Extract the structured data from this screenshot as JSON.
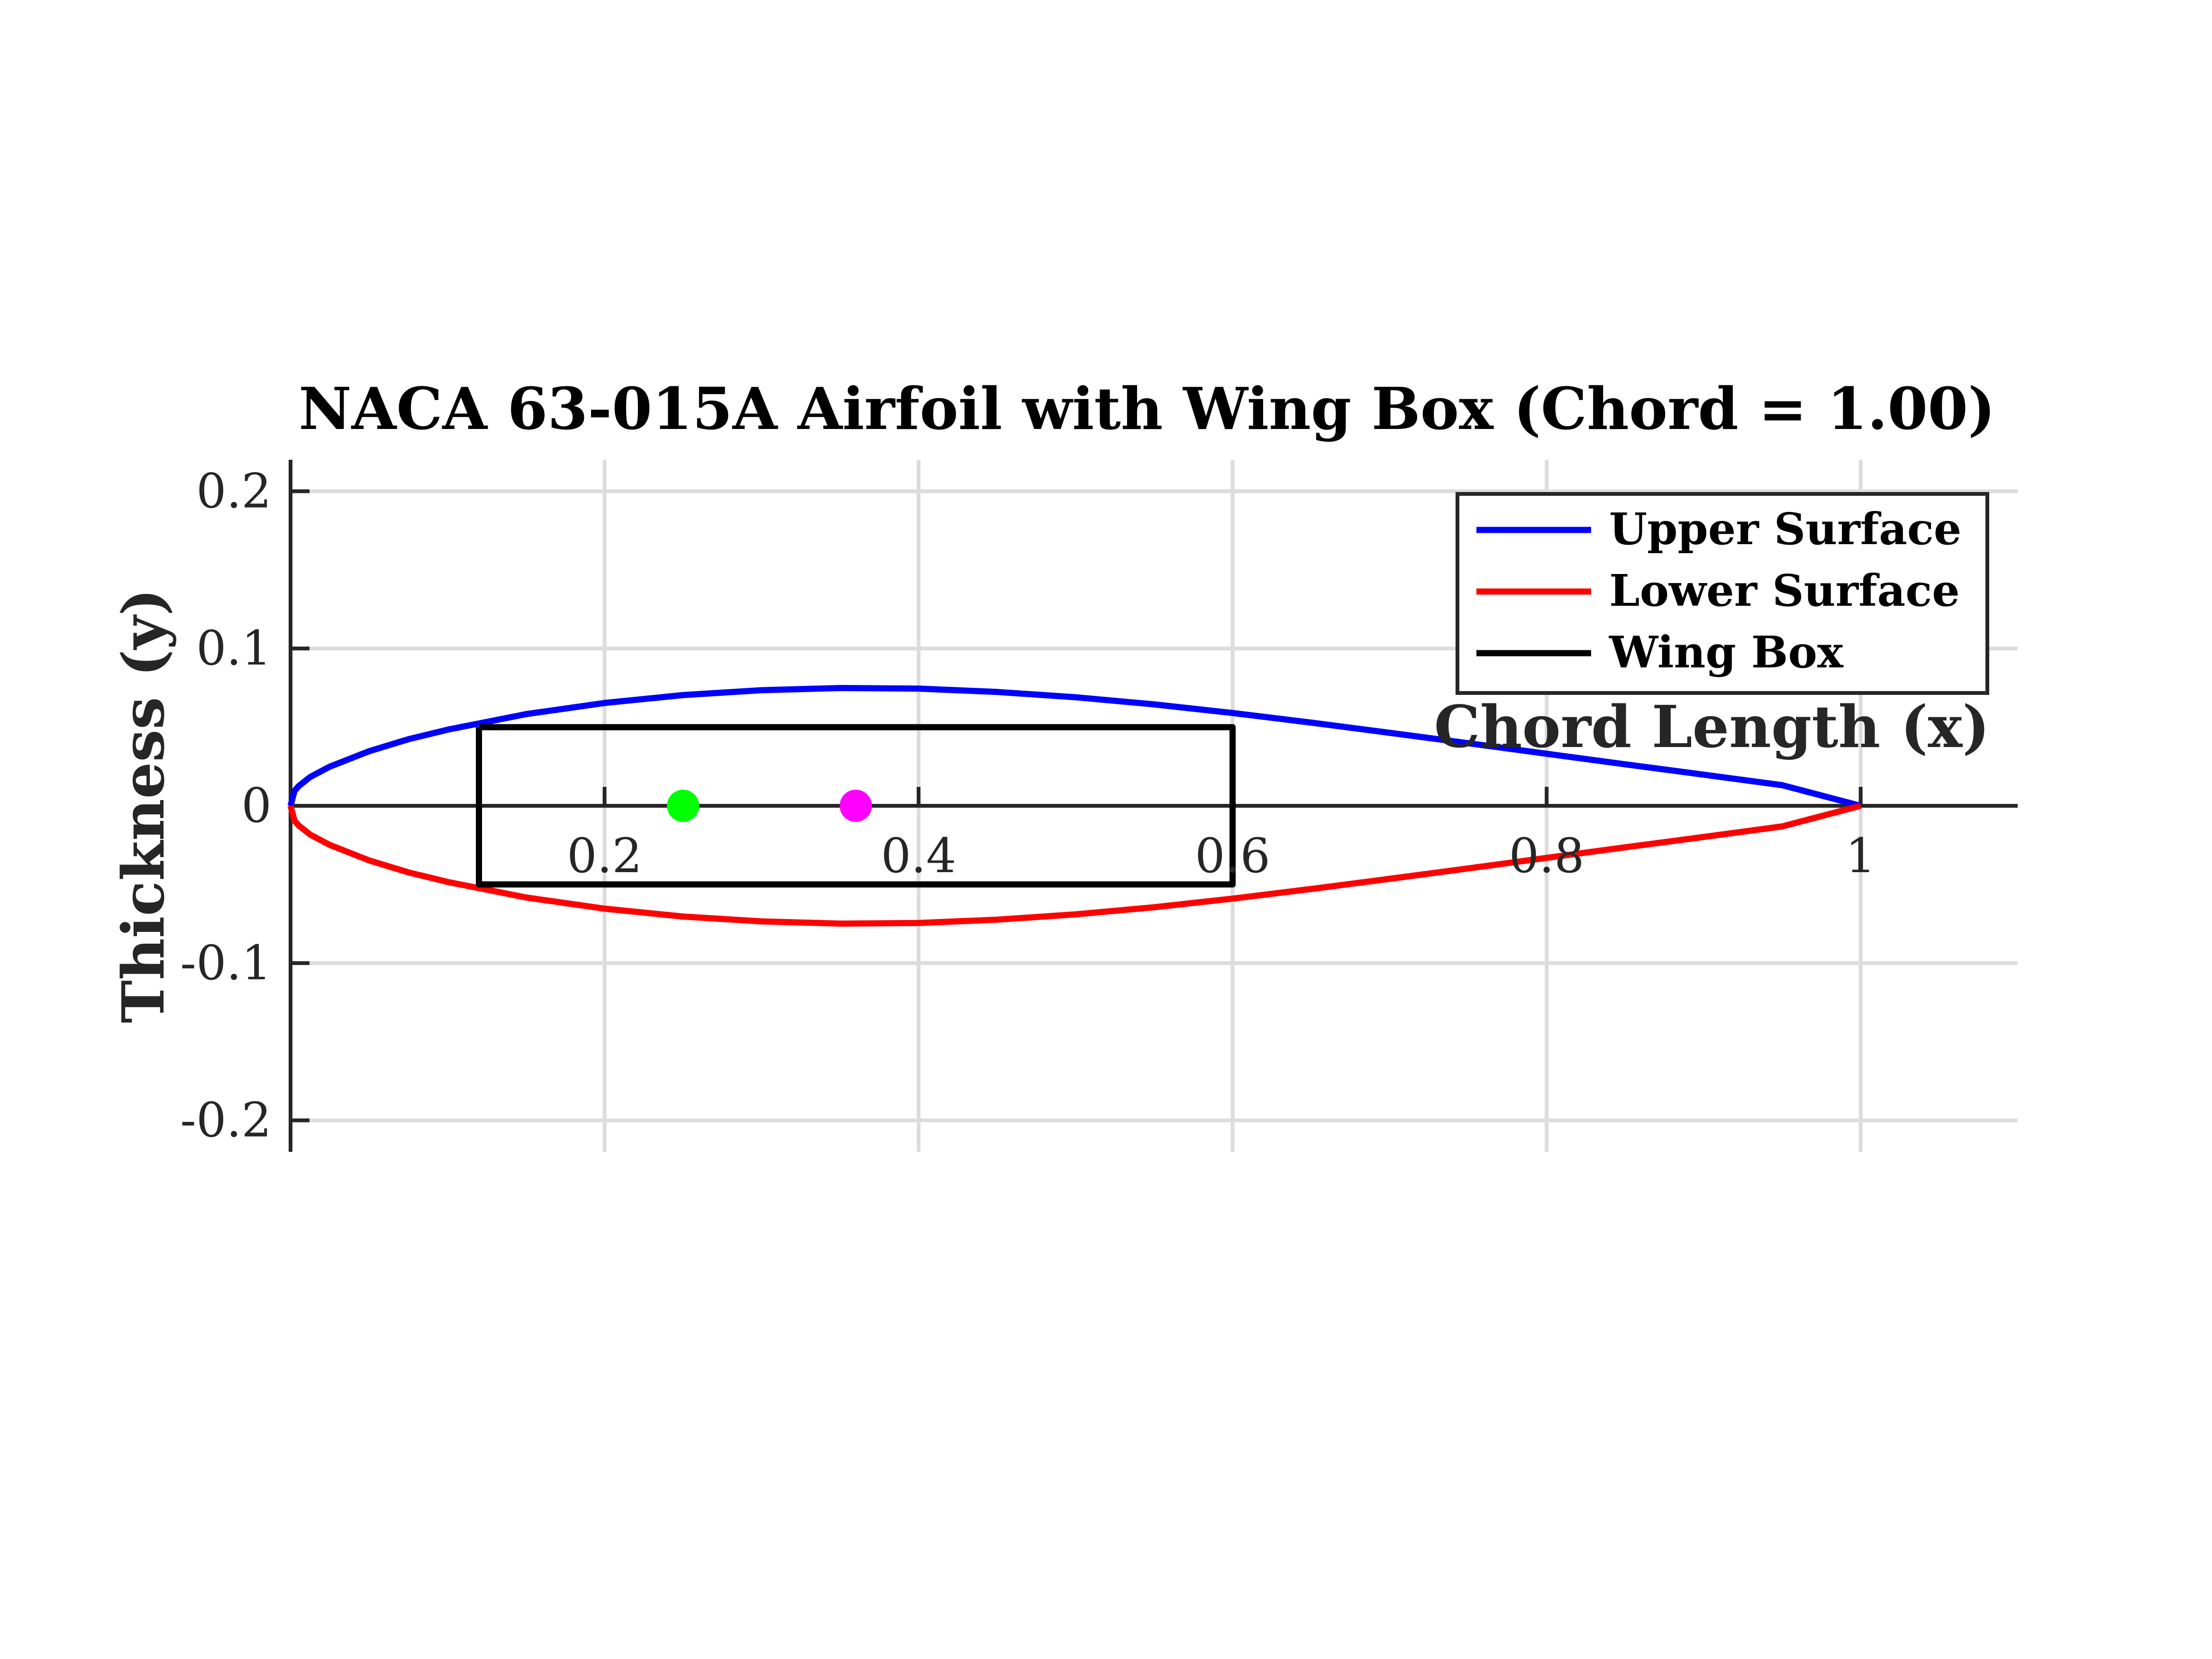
{
  "chart_data": {
    "type": "line",
    "title": "NACA 63-015A Airfoil with Wing Box (Chord = 1.00)",
    "xlabel": "Chord Length (x)",
    "ylabel": "Thickness (y)",
    "xlim": [
      0,
      1.1
    ],
    "ylim": [
      -0.22,
      0.22
    ],
    "xticks": [
      0.2,
      0.4,
      0.6,
      0.8,
      1
    ],
    "xtick_labels": [
      "0.2",
      "0.4",
      "0.6",
      "0.8",
      "1"
    ],
    "yticks": [
      0.2,
      0.1,
      0,
      -0.1,
      -0.2
    ],
    "ytick_labels": [
      "0.2",
      "0.1",
      "0",
      "-0.1",
      "-0.2"
    ],
    "grid": true,
    "legend_position": "top-right",
    "series": [
      {
        "name": "Upper Surface",
        "color": "#0000ff",
        "x": [
          0,
          0.0025,
          0.005,
          0.0125,
          0.025,
          0.05,
          0.075,
          0.1,
          0.15,
          0.2,
          0.25,
          0.3,
          0.35,
          0.4,
          0.45,
          0.5,
          0.55,
          0.6,
          0.65,
          0.7,
          0.75,
          0.8,
          0.85,
          0.9,
          0.95,
          1.0
        ],
        "y": [
          0,
          0.0094,
          0.0124,
          0.0183,
          0.0249,
          0.0347,
          0.0423,
          0.0484,
          0.0583,
          0.0654,
          0.0704,
          0.0735,
          0.0749,
          0.0745,
          0.0724,
          0.069,
          0.0645,
          0.059,
          0.0529,
          0.0464,
          0.0398,
          0.0331,
          0.0264,
          0.0198,
          0.0131,
          0.0
        ]
      },
      {
        "name": "Lower Surface",
        "color": "#ff0000",
        "x": [
          0,
          0.0025,
          0.005,
          0.0125,
          0.025,
          0.05,
          0.075,
          0.1,
          0.15,
          0.2,
          0.25,
          0.3,
          0.35,
          0.4,
          0.45,
          0.5,
          0.55,
          0.6,
          0.65,
          0.7,
          0.75,
          0.8,
          0.85,
          0.9,
          0.95,
          1.0
        ],
        "y": [
          0,
          -0.0094,
          -0.0124,
          -0.0183,
          -0.0249,
          -0.0347,
          -0.0423,
          -0.0484,
          -0.0583,
          -0.0654,
          -0.0704,
          -0.0735,
          -0.0749,
          -0.0745,
          -0.0724,
          -0.069,
          -0.0645,
          -0.059,
          -0.0529,
          -0.0464,
          -0.0398,
          -0.0331,
          -0.0264,
          -0.0198,
          -0.0131,
          0.0
        ]
      },
      {
        "name": "Wing Box",
        "color": "#000000",
        "x": [
          0.12,
          0.6,
          0.6,
          0.12,
          0.12
        ],
        "y": [
          0.05,
          0.05,
          -0.05,
          -0.05,
          0.05
        ]
      }
    ],
    "markers": [
      {
        "x": 0.25,
        "y": 0,
        "color": "#00ff00"
      },
      {
        "x": 0.36,
        "y": 0,
        "color": "#ff00ff"
      }
    ]
  }
}
